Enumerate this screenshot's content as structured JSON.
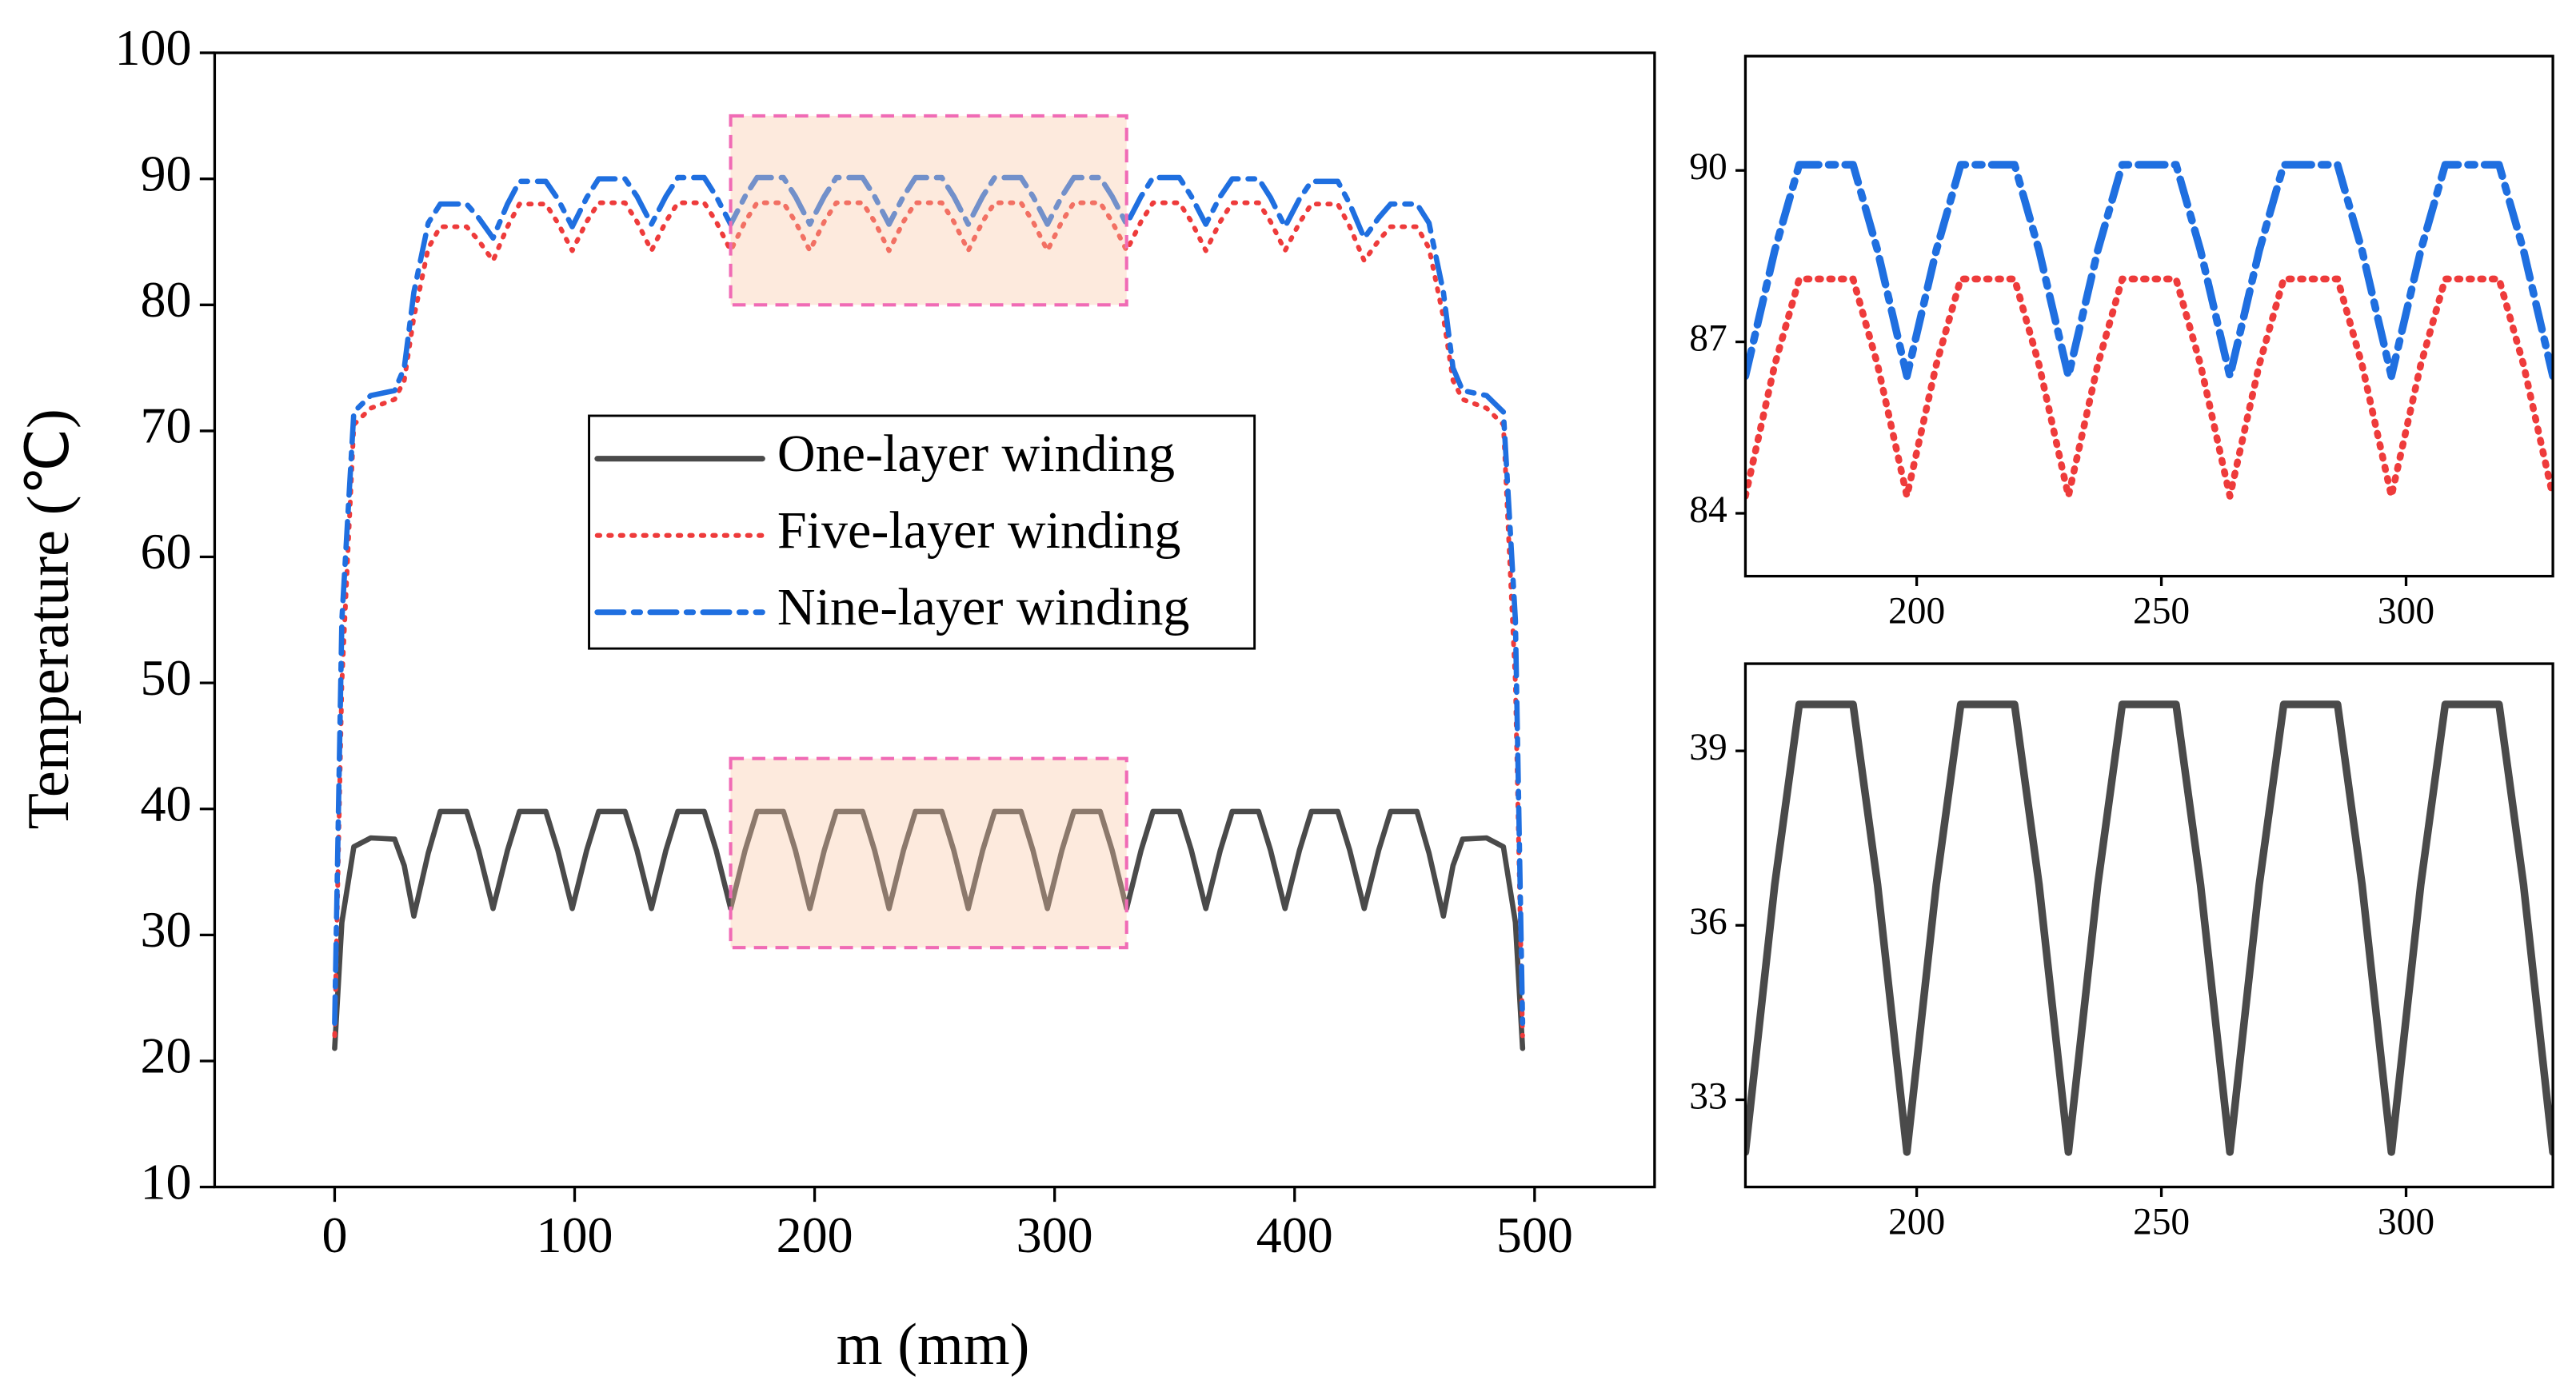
{
  "chart_data": [
    {
      "type": "line",
      "xlabel": "m (mm)",
      "ylabel": "Temperature (℃)",
      "xlim": [
        -50,
        550
      ],
      "ylim": [
        10,
        100
      ],
      "xticks": [
        0,
        100,
        200,
        300,
        400,
        500
      ],
      "yticks": [
        10,
        20,
        30,
        40,
        50,
        60,
        70,
        80,
        90,
        100
      ],
      "legend": "center",
      "highlights": [
        {
          "xlim": [
            165,
            330
          ],
          "ylim": [
            80,
            95
          ],
          "color": "#f06bb5"
        },
        {
          "xlim": [
            165,
            330
          ],
          "ylim": [
            29,
            44
          ],
          "color": "#f06bb5"
        }
      ],
      "x": [
        0,
        3,
        8,
        15,
        25,
        29,
        33,
        39,
        44,
        55,
        60,
        66,
        72,
        77,
        88,
        93,
        99,
        105,
        110,
        121,
        126,
        132,
        138,
        143,
        154,
        159,
        165,
        171,
        176,
        187,
        192,
        198,
        204,
        209,
        220,
        225,
        231,
        237,
        242,
        253,
        258,
        264,
        270,
        275,
        286,
        291,
        297,
        303,
        308,
        319,
        324,
        330,
        336,
        341,
        352,
        357,
        363,
        369,
        374,
        385,
        390,
        396,
        402,
        407,
        418,
        423,
        429,
        435,
        440,
        451,
        456,
        462,
        466,
        470,
        480,
        487,
        492,
        495
      ],
      "series": [
        {
          "name": "One-layer winding",
          "color": "#4a4a4a",
          "style": "solid",
          "values": [
            21,
            31,
            37,
            37.7,
            37.6,
            35.5,
            31.5,
            36.5,
            39.8,
            39.8,
            36.7,
            32.1,
            36.7,
            39.8,
            39.8,
            36.7,
            32.1,
            36.7,
            39.8,
            39.8,
            36.7,
            32.1,
            36.7,
            39.8,
            39.8,
            36.7,
            32.1,
            36.7,
            39.8,
            39.8,
            36.7,
            32.1,
            36.7,
            39.8,
            39.8,
            36.7,
            32.1,
            36.7,
            39.8,
            39.8,
            36.7,
            32.1,
            36.7,
            39.8,
            39.8,
            36.7,
            32.1,
            36.7,
            39.8,
            39.8,
            36.7,
            32.1,
            36.7,
            39.8,
            39.8,
            36.7,
            32.1,
            36.7,
            39.8,
            39.8,
            36.7,
            32.1,
            36.7,
            39.8,
            39.8,
            36.7,
            32.1,
            36.7,
            39.8,
            39.8,
            36.5,
            31.5,
            35.5,
            37.6,
            37.7,
            37,
            31,
            21
          ]
        },
        {
          "name": "Five-layer winding",
          "color": "#ee3b3b",
          "style": "dotted",
          "values": [
            22,
            50,
            70.5,
            71.8,
            72.5,
            74,
            79,
            84.5,
            86.2,
            86.2,
            85.1,
            83.5,
            86.2,
            88.0,
            88.0,
            86.5,
            84.3,
            86.6,
            88.1,
            88.1,
            86.6,
            84.3,
            86.6,
            88.1,
            88.1,
            86.6,
            84.3,
            86.6,
            88.1,
            88.1,
            86.6,
            84.3,
            86.6,
            88.1,
            88.1,
            86.6,
            84.3,
            86.6,
            88.1,
            88.1,
            86.6,
            84.3,
            86.6,
            88.1,
            88.1,
            86.6,
            84.3,
            86.6,
            88.1,
            88.1,
            86.6,
            84.3,
            86.6,
            88.1,
            88.1,
            86.6,
            84.3,
            86.6,
            88.1,
            88.1,
            86.6,
            84.3,
            86.5,
            88.0,
            88.0,
            86.2,
            83.5,
            85.1,
            86.2,
            86.2,
            84.5,
            79,
            74,
            72.5,
            71.8,
            70.5,
            50,
            22
          ]
        },
        {
          "name": "Nine-layer winding",
          "color": "#1f6fe0",
          "style": "dashdot",
          "values": [
            23,
            55,
            71.5,
            72.8,
            73.2,
            75,
            81,
            86.5,
            88.0,
            88.0,
            86.9,
            85.3,
            88.0,
            89.8,
            89.8,
            88.4,
            86.2,
            88.5,
            90.0,
            90.0,
            88.6,
            86.4,
            88.6,
            90.1,
            90.1,
            88.6,
            86.4,
            88.6,
            90.1,
            90.1,
            88.6,
            86.4,
            88.6,
            90.1,
            90.1,
            88.6,
            86.4,
            88.6,
            90.1,
            90.1,
            88.6,
            86.4,
            88.6,
            90.1,
            90.1,
            88.6,
            86.4,
            88.6,
            90.1,
            90.1,
            88.6,
            86.4,
            88.6,
            90.1,
            90.1,
            88.6,
            86.4,
            88.6,
            90.0,
            90.0,
            88.5,
            86.2,
            88.4,
            89.8,
            89.8,
            88.0,
            85.3,
            86.9,
            88.0,
            88.0,
            86.5,
            81,
            75,
            73.2,
            72.8,
            71.5,
            55,
            23
          ]
        }
      ]
    },
    {
      "type": "line",
      "xlim": [
        165,
        330
      ],
      "ylim": [
        82.9,
        92
      ],
      "xticks": [
        200,
        250,
        300
      ],
      "yticks": [
        84,
        87,
        90
      ],
      "x": [
        165,
        171,
        176,
        187,
        192,
        198,
        204,
        209,
        220,
        225,
        231,
        237,
        242,
        253,
        258,
        264,
        270,
        275,
        286,
        291,
        297,
        303,
        308,
        319,
        324,
        330
      ],
      "series": [
        {
          "color": "#ee3b3b",
          "style": "dotted",
          "values": [
            84.3,
            86.6,
            88.1,
            88.1,
            86.6,
            84.3,
            86.6,
            88.1,
            88.1,
            86.6,
            84.3,
            86.6,
            88.1,
            88.1,
            86.6,
            84.3,
            86.6,
            88.1,
            88.1,
            86.6,
            84.3,
            86.6,
            88.1,
            88.1,
            86.6,
            84.3
          ]
        },
        {
          "color": "#1f6fe0",
          "style": "dashdot",
          "values": [
            86.4,
            88.6,
            90.1,
            90.1,
            88.6,
            86.4,
            88.6,
            90.1,
            90.1,
            88.6,
            86.4,
            88.6,
            90.1,
            90.1,
            88.6,
            86.4,
            88.6,
            90.1,
            90.1,
            88.6,
            86.4,
            88.6,
            90.1,
            90.1,
            88.6,
            86.4
          ]
        }
      ]
    },
    {
      "type": "line",
      "xlim": [
        165,
        330
      ],
      "ylim": [
        31.5,
        40.5
      ],
      "xticks": [
        200,
        250,
        300
      ],
      "yticks": [
        33,
        36,
        39
      ],
      "x": [
        165,
        171,
        176,
        187,
        192,
        198,
        204,
        209,
        220,
        225,
        231,
        237,
        242,
        253,
        258,
        264,
        270,
        275,
        286,
        291,
        297,
        303,
        308,
        319,
        324,
        330
      ],
      "series": [
        {
          "color": "#4a4a4a",
          "style": "solid",
          "values": [
            32.1,
            36.7,
            39.8,
            39.8,
            36.7,
            32.1,
            36.7,
            39.8,
            39.8,
            36.7,
            32.1,
            36.7,
            39.8,
            39.8,
            36.7,
            32.1,
            36.7,
            39.8,
            39.8,
            36.7,
            32.1,
            36.7,
            39.8,
            39.8,
            36.7,
            32.1
          ]
        }
      ]
    }
  ]
}
